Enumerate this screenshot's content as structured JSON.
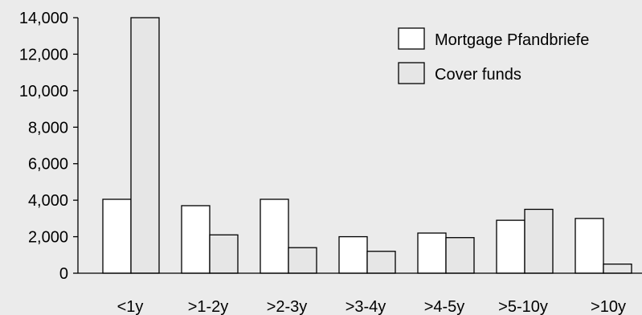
{
  "chart_data": {
    "type": "bar",
    "categories": [
      "<1y",
      ">1-2y",
      ">2-3y",
      ">3-4y",
      ">4-5y",
      ">5-10y",
      ">10y"
    ],
    "series": [
      {
        "name": "Mortgage Pfandbriefe",
        "values": [
          4050,
          3700,
          4050,
          2000,
          2200,
          2900,
          3000
        ],
        "color": "#ffffff"
      },
      {
        "name": "Cover funds",
        "values": [
          14000,
          2100,
          1400,
          1200,
          1950,
          3500,
          500
        ],
        "color": "#e6e6e6"
      }
    ],
    "ylim": [
      0,
      14000
    ],
    "yticks": [
      "0",
      "2,000",
      "4,000",
      "6,000",
      "8,000",
      "10,000",
      "12,000",
      "14,000"
    ],
    "ytick_values": [
      0,
      2000,
      4000,
      6000,
      8000,
      10000,
      12000,
      14000
    ],
    "grid": false,
    "legend_position": "top-right",
    "title": "",
    "xlabel": "",
    "ylabel": ""
  }
}
